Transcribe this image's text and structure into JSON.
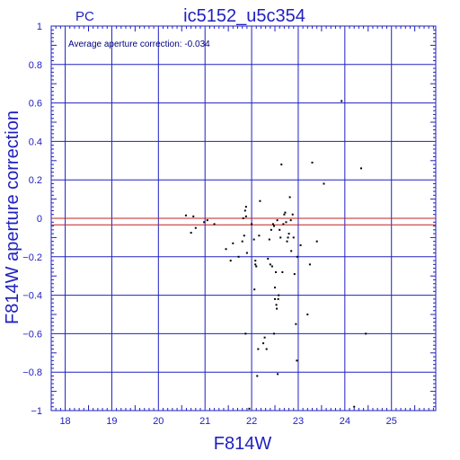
{
  "chart_data": {
    "type": "scatter",
    "tag": "PC",
    "title": "ic5152_u5c354",
    "xlabel": "F814W",
    "ylabel": "F814W aperture correction",
    "annotation": "Average aperture correction: -0.034",
    "average_correction": -0.034,
    "xlim": [
      17.7,
      25.95
    ],
    "ylim": [
      -1,
      1
    ],
    "x_ticks": [
      18,
      19,
      20,
      21,
      22,
      23,
      24,
      25
    ],
    "y_ticks": [
      1,
      0.8,
      0.6,
      0.4,
      0.2,
      0,
      -0.2,
      -0.4,
      -0.6,
      -0.8,
      -1
    ],
    "x_tick_labels": [
      "18",
      "19",
      "20",
      "21",
      "22",
      "23",
      "24",
      "25"
    ],
    "y_tick_labels": [
      "1",
      "0.8",
      "0.6",
      "0.4",
      "0.2",
      "0",
      "−0.2",
      "−0.4",
      "−0.6",
      "−0.8",
      "−1"
    ],
    "grid": true,
    "colors": {
      "axes": "#2020c0",
      "text": "#2020c0",
      "zero_line": "#c02020",
      "average_line": "#c02020",
      "points": "#000000"
    },
    "points": [
      [
        20.59,
        0.015
      ],
      [
        20.75,
        0.01
      ],
      [
        20.8,
        -0.05
      ],
      [
        20.7,
        -0.075
      ],
      [
        20.98,
        -0.02
      ],
      [
        21.05,
        -0.01
      ],
      [
        21.2,
        -0.03
      ],
      [
        21.45,
        -0.16
      ],
      [
        21.55,
        -0.22
      ],
      [
        21.6,
        -0.13
      ],
      [
        21.72,
        -0.2
      ],
      [
        21.8,
        -0.12
      ],
      [
        21.82,
        0.0
      ],
      [
        21.84,
        -0.09
      ],
      [
        21.86,
        0.04
      ],
      [
        21.88,
        0.06
      ],
      [
        21.88,
        0.01
      ],
      [
        21.9,
        -0.18
      ],
      [
        21.87,
        -0.6
      ],
      [
        21.95,
        -0.99
      ],
      [
        22.0,
        -0.03
      ],
      [
        22.05,
        -0.11
      ],
      [
        22.06,
        -0.37
      ],
      [
        22.08,
        -0.22
      ],
      [
        22.08,
        -0.24
      ],
      [
        22.1,
        -0.25
      ],
      [
        22.12,
        -0.82
      ],
      [
        22.14,
        -0.68
      ],
      [
        22.16,
        -0.09
      ],
      [
        22.18,
        0.09
      ],
      [
        22.25,
        -0.65
      ],
      [
        22.28,
        -0.62
      ],
      [
        22.32,
        -0.68
      ],
      [
        22.35,
        -0.21
      ],
      [
        22.38,
        -0.11
      ],
      [
        22.4,
        -0.24
      ],
      [
        22.42,
        -0.06
      ],
      [
        22.44,
        -0.25
      ],
      [
        22.46,
        -0.03
      ],
      [
        22.48,
        -0.04
      ],
      [
        22.48,
        -0.6
      ],
      [
        22.5,
        -0.42
      ],
      [
        22.5,
        -0.36
      ],
      [
        22.52,
        -0.28
      ],
      [
        22.53,
        -0.45
      ],
      [
        22.54,
        -0.47
      ],
      [
        22.55,
        -0.01
      ],
      [
        22.56,
        -0.81
      ],
      [
        22.57,
        -0.42
      ],
      [
        22.58,
        -0.4
      ],
      [
        22.6,
        -0.06
      ],
      [
        22.62,
        -0.1
      ],
      [
        22.64,
        0.28
      ],
      [
        22.66,
        -0.28
      ],
      [
        22.68,
        -0.03
      ],
      [
        22.7,
        0.02
      ],
      [
        22.72,
        0.03
      ],
      [
        22.74,
        -0.02
      ],
      [
        22.76,
        -0.12
      ],
      [
        22.78,
        -0.1
      ],
      [
        22.8,
        -0.08
      ],
      [
        22.82,
        0.11
      ],
      [
        22.84,
        -0.01
      ],
      [
        22.85,
        -0.17
      ],
      [
        22.88,
        0.02
      ],
      [
        22.9,
        -0.1
      ],
      [
        22.92,
        -0.29
      ],
      [
        22.95,
        -0.55
      ],
      [
        22.97,
        -0.74
      ],
      [
        22.98,
        -0.2
      ],
      [
        23.05,
        -0.14
      ],
      [
        23.2,
        -0.5
      ],
      [
        23.25,
        -0.24
      ],
      [
        23.3,
        0.29
      ],
      [
        23.4,
        -0.12
      ],
      [
        23.55,
        0.18
      ],
      [
        23.93,
        0.61
      ],
      [
        24.2,
        -0.98
      ],
      [
        24.35,
        0.26
      ],
      [
        24.45,
        -0.6
      ]
    ]
  }
}
